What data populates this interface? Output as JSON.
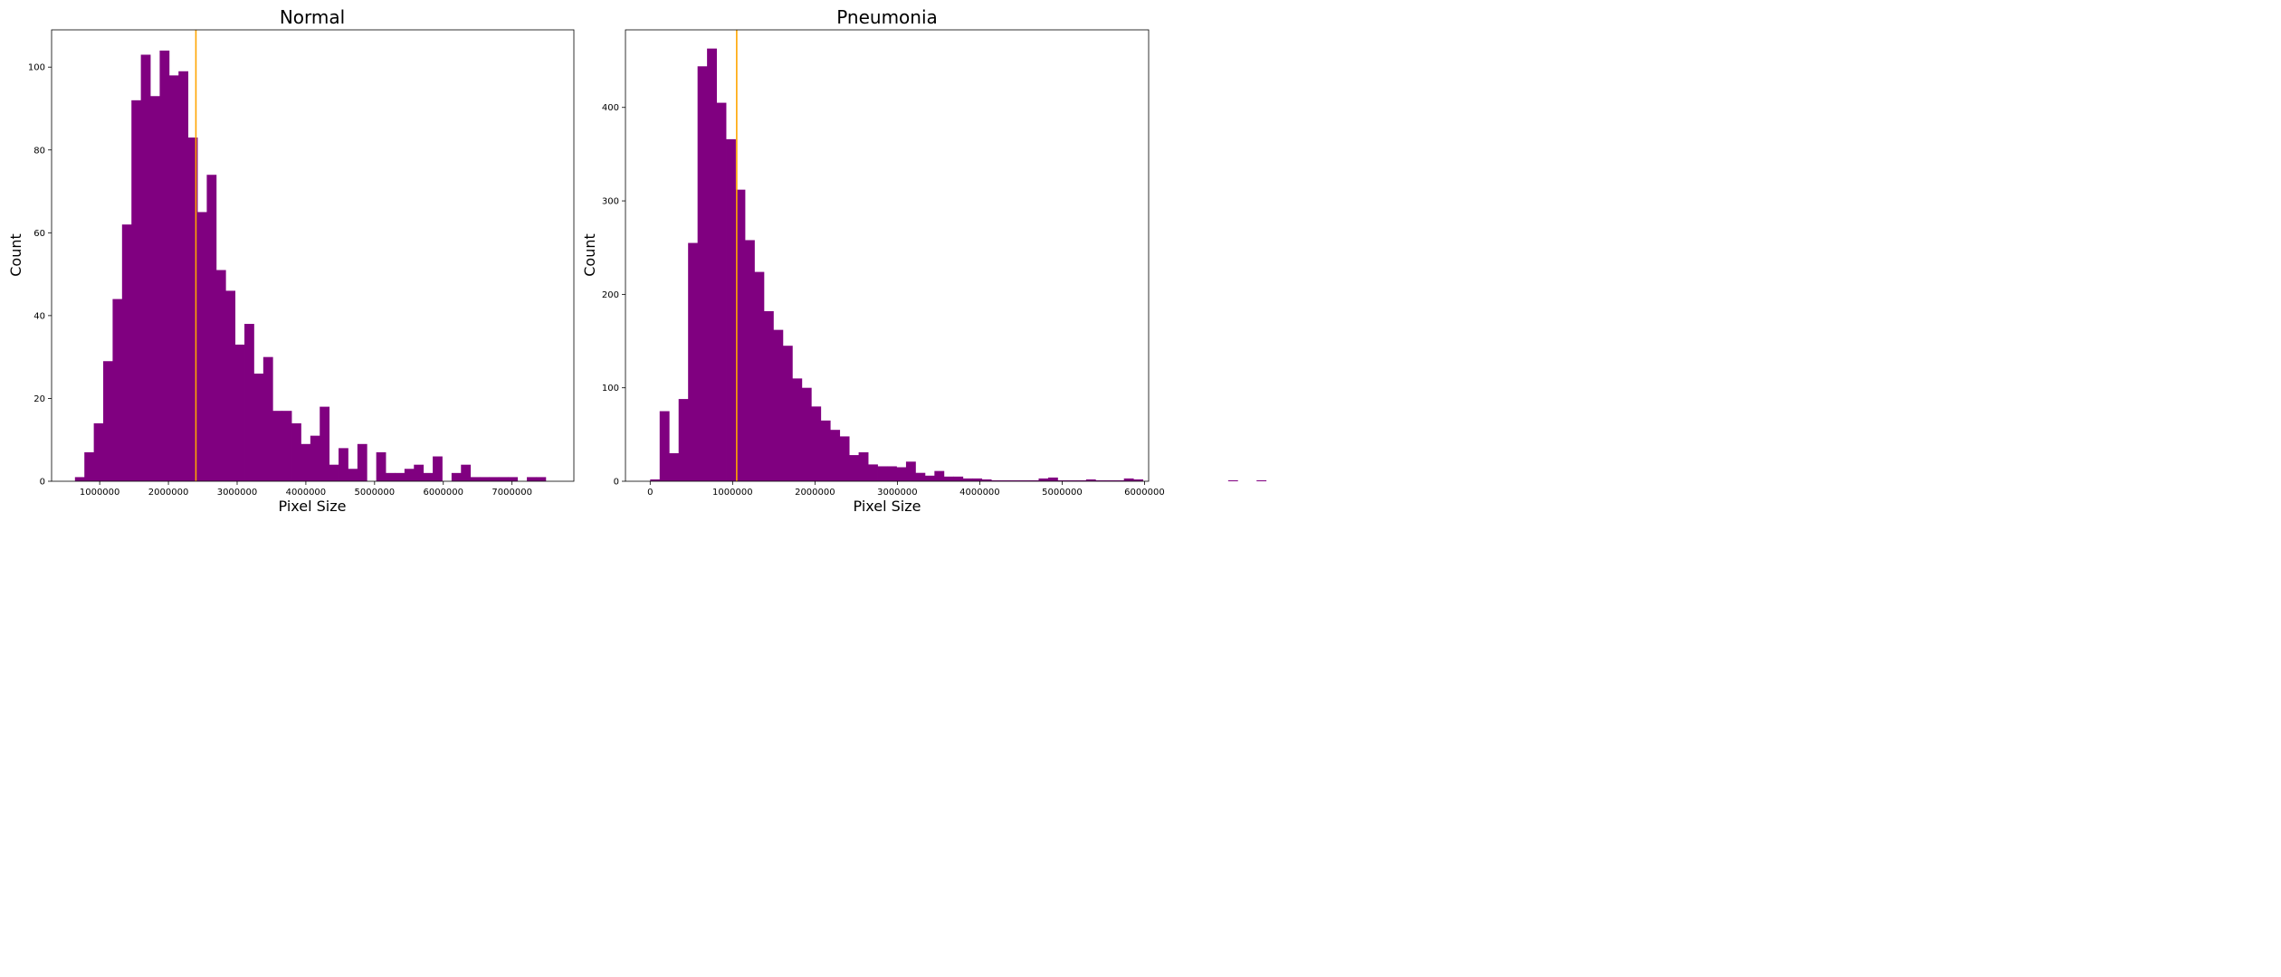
{
  "colors": {
    "bar": "#800080",
    "mean_line": "#ffa500",
    "axes": "#000000",
    "background": "#ffffff"
  },
  "chart_data": [
    {
      "type": "bar",
      "title": "Normal",
      "xlabel": "Pixel Size",
      "ylabel": "Count",
      "xlim": [
        300000,
        7900000
      ],
      "ylim": [
        0,
        109
      ],
      "xticks": [
        1000000,
        2000000,
        3000000,
        4000000,
        5000000,
        6000000,
        7000000
      ],
      "xtick_labels": [
        "1000000",
        "2000000",
        "3000000",
        "4000000",
        "5000000",
        "6000000",
        "7000000"
      ],
      "yticks": [
        0,
        20,
        40,
        60,
        80,
        100
      ],
      "ytick_labels": [
        "0",
        "20",
        "40",
        "60",
        "80",
        "100"
      ],
      "bins_start": 640000,
      "bin_width": 137000,
      "values": [
        1,
        7,
        14,
        29,
        44,
        62,
        92,
        103,
        93,
        104,
        98,
        99,
        83,
        65,
        74,
        51,
        46,
        33,
        38,
        26,
        30,
        17,
        17,
        14,
        9,
        11,
        18,
        4,
        8,
        3,
        9,
        0,
        7,
        2,
        2,
        3,
        4,
        2,
        6,
        0,
        2,
        4,
        1,
        1,
        1,
        1,
        1,
        0,
        1,
        1
      ],
      "mean_line": 2400000,
      "grid": false
    },
    {
      "type": "bar",
      "title": "Pneumonia",
      "xlabel": "Pixel Size",
      "ylabel": "Count",
      "xlim": [
        -300000,
        6050000
      ],
      "ylim": [
        0,
        483
      ],
      "xticks": [
        0,
        1000000,
        2000000,
        3000000,
        4000000,
        5000000,
        6000000
      ],
      "xtick_labels": [
        "0",
        "1000000",
        "2000000",
        "3000000",
        "4000000",
        "5000000",
        "6000000"
      ],
      "yticks": [
        0,
        100,
        200,
        300,
        400
      ],
      "ytick_labels": [
        "0",
        "100",
        "200",
        "300",
        "400"
      ],
      "bins_start": 0,
      "bin_width": 115000,
      "values": [
        2,
        75,
        30,
        88,
        255,
        444,
        463,
        405,
        366,
        312,
        258,
        224,
        182,
        162,
        145,
        110,
        100,
        80,
        65,
        55,
        48,
        28,
        31,
        18,
        16,
        16,
        15,
        21,
        9,
        6,
        11,
        5,
        5,
        3,
        3,
        2,
        1,
        1,
        1,
        1,
        1,
        3,
        4,
        1,
        1,
        1,
        2,
        1,
        1,
        1,
        3,
        2,
        0,
        0,
        0,
        0,
        0,
        0,
        0,
        0,
        0,
        1,
        0,
        0,
        1
      ],
      "mean_line": 1050000,
      "grid": false
    }
  ]
}
